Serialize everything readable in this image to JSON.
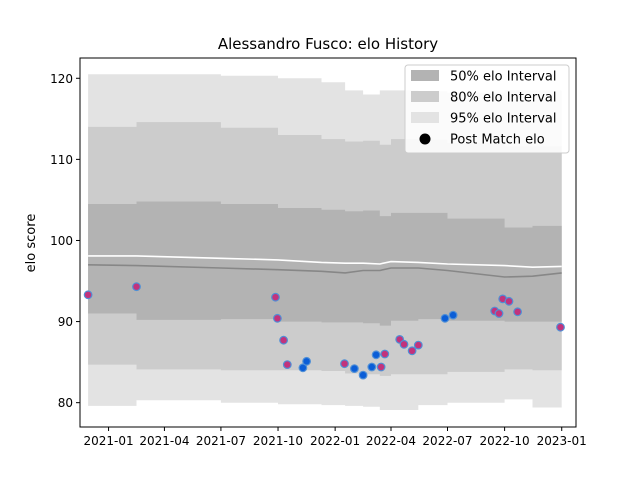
{
  "chart_data": {
    "type": "scatter",
    "title": "Alessandro Fusco: elo History",
    "xlabel": "",
    "ylabel": "elo score",
    "xlim": [
      "2020-11-16",
      "2023-01-24"
    ],
    "ylim": [
      77,
      122.5
    ],
    "x_ticks": [
      "2021-01-01",
      "2021-04-01",
      "2021-07-01",
      "2021-10-01",
      "2022-01-01",
      "2022-04-01",
      "2022-07-01",
      "2022-10-01",
      "2023-01-01"
    ],
    "x_tick_labels": [
      "2021-01",
      "2021-04",
      "2021-07",
      "2021-10",
      "2022-01",
      "2022-04",
      "2022-07",
      "2022-10",
      "2023-01"
    ],
    "y_ticks": [
      80,
      90,
      100,
      110,
      120
    ],
    "legend": {
      "position": "upper right",
      "items": [
        {
          "label": "50% elo Interval",
          "kind": "band",
          "color": "#b3b3b3"
        },
        {
          "label": "80% elo Interval",
          "kind": "band",
          "color": "#cccccc"
        },
        {
          "label": "95% elo Interval",
          "kind": "band",
          "color": "#e3e3e3"
        },
        {
          "label": "Post Match elo",
          "kind": "marker",
          "color": "#000000"
        }
      ]
    },
    "bands": {
      "dates": [
        "2020-11-29",
        "2021-02-15",
        "2021-07-01",
        "2021-10-01",
        "2021-12-10",
        "2022-01-17",
        "2022-02-15",
        "2022-03-14",
        "2022-04-01",
        "2022-05-15",
        "2022-07-01",
        "2022-10-01",
        "2022-11-15",
        "2023-01-01"
      ],
      "median": [
        97.0,
        96.9,
        96.6,
        96.4,
        96.2,
        96.0,
        96.3,
        96.3,
        96.6,
        96.6,
        96.3,
        95.5,
        95.6,
        96.0
      ],
      "mean": [
        98.1,
        98.1,
        97.8,
        97.6,
        97.3,
        97.2,
        97.2,
        97.1,
        97.4,
        97.3,
        97.1,
        96.9,
        96.7,
        96.8
      ],
      "p50_low": [
        91.0,
        90.2,
        90.3,
        90.0,
        89.9,
        89.9,
        89.8,
        89.5,
        90.1,
        90.3,
        90.1,
        90.0,
        90.0,
        90.5
      ],
      "p50_high": [
        104.5,
        104.8,
        104.5,
        104.0,
        103.8,
        103.6,
        103.7,
        103.0,
        103.4,
        103.4,
        102.7,
        101.6,
        101.8,
        102.3
      ],
      "p80_low": [
        84.7,
        84.1,
        84.0,
        84.0,
        83.9,
        83.6,
        83.5,
        83.3,
        83.5,
        83.5,
        83.8,
        84.1,
        84.0,
        83.9
      ],
      "p80_high": [
        114.0,
        114.6,
        113.9,
        113.0,
        112.5,
        112.2,
        112.3,
        111.8,
        112.5,
        112.4,
        112.0,
        111.6,
        111.6,
        111.5
      ],
      "p95_low": [
        79.6,
        80.3,
        80.0,
        79.8,
        79.7,
        79.6,
        79.5,
        79.1,
        79.1,
        79.7,
        80.0,
        80.4,
        79.4,
        79.3
      ],
      "p95_high": [
        120.5,
        120.5,
        120.3,
        120.0,
        119.5,
        118.5,
        118.0,
        118.5,
        118.5,
        118.4,
        118.2,
        118.5,
        118.5,
        118.6
      ]
    },
    "colors": {
      "p95": "#e3e3e3",
      "p80": "#cccccc",
      "p50": "#b3b3b3",
      "median_line": "#878787",
      "mean_line": "#ffffff",
      "marker_fill_a": "#c2337c",
      "marker_fill_b": "#0b5ed7",
      "marker_edge": "#4f8fd6"
    },
    "series": [
      {
        "name": "Post Match elo",
        "points": [
          {
            "x": "2020-11-29",
            "y": 93.3,
            "fill": "a"
          },
          {
            "x": "2021-02-15",
            "y": 94.3,
            "fill": "a"
          },
          {
            "x": "2021-09-27",
            "y": 93.0,
            "fill": "a"
          },
          {
            "x": "2021-09-30",
            "y": 90.4,
            "fill": "a"
          },
          {
            "x": "2021-10-10",
            "y": 87.7,
            "fill": "a"
          },
          {
            "x": "2021-10-16",
            "y": 84.7,
            "fill": "a"
          },
          {
            "x": "2021-11-10",
            "y": 84.3,
            "fill": "b"
          },
          {
            "x": "2021-11-16",
            "y": 85.1,
            "fill": "b"
          },
          {
            "x": "2022-01-16",
            "y": 84.8,
            "fill": "a"
          },
          {
            "x": "2022-02-01",
            "y": 84.2,
            "fill": "b"
          },
          {
            "x": "2022-02-15",
            "y": 83.4,
            "fill": "b"
          },
          {
            "x": "2022-03-01",
            "y": 84.4,
            "fill": "b"
          },
          {
            "x": "2022-03-08",
            "y": 85.9,
            "fill": "b"
          },
          {
            "x": "2022-03-16",
            "y": 84.4,
            "fill": "a"
          },
          {
            "x": "2022-03-22",
            "y": 86.0,
            "fill": "a"
          },
          {
            "x": "2022-04-15",
            "y": 87.8,
            "fill": "a"
          },
          {
            "x": "2022-04-22",
            "y": 87.2,
            "fill": "a"
          },
          {
            "x": "2022-05-05",
            "y": 86.4,
            "fill": "a"
          },
          {
            "x": "2022-05-15",
            "y": 87.1,
            "fill": "a"
          },
          {
            "x": "2022-06-27",
            "y": 90.4,
            "fill": "b"
          },
          {
            "x": "2022-07-10",
            "y": 90.8,
            "fill": "b"
          },
          {
            "x": "2022-09-15",
            "y": 91.3,
            "fill": "a"
          },
          {
            "x": "2022-09-22",
            "y": 91.0,
            "fill": "a"
          },
          {
            "x": "2022-09-28",
            "y": 92.8,
            "fill": "a"
          },
          {
            "x": "2022-10-08",
            "y": 92.5,
            "fill": "a"
          },
          {
            "x": "2022-10-22",
            "y": 91.2,
            "fill": "a"
          },
          {
            "x": "2022-12-30",
            "y": 89.3,
            "fill": "a"
          }
        ]
      }
    ]
  }
}
